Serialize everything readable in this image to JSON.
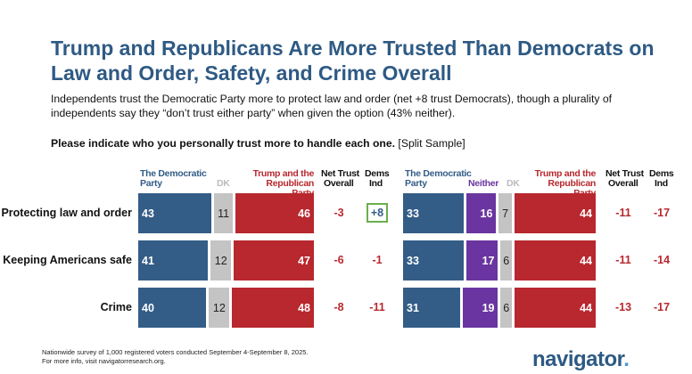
{
  "title": "Trump and Republicans Are More Trusted Than Democrats on Law and Order, Safety, and Crime Overall",
  "subtitle": "Independents trust the Democratic Party more to protect law and order (net +8 trust Democrats), though a plurality of independents say they “don’t trust either party” when given the option (43% neither).",
  "question": {
    "bold": "Please indicate who you personally trust more to handle each one.",
    "note": " [Split Sample]"
  },
  "footer": {
    "line1": "Nationwide survey of 1,000 registered voters conducted September 4-September 8, 2025.",
    "line2": "For more info, visit navigatorresearch.org."
  },
  "logo": "navigator",
  "colors": {
    "dem": "#335d87",
    "neither": "#6a35a0",
    "dk": "#c4c4c4",
    "rep": "#b8282e",
    "title": "#2e5a84",
    "highlight_box": "#6ab04c"
  },
  "chart_data": [
    {
      "type": "bar",
      "stacked": true,
      "orientation": "horizontal",
      "categories": [
        "Protecting law and order",
        "Keeping Americans safe",
        "Crime"
      ],
      "series": [
        {
          "name": "The Democratic Party",
          "values": [
            43,
            41,
            40
          ]
        },
        {
          "name": "DK",
          "values": [
            11,
            12,
            12
          ]
        },
        {
          "name": "Trump and the Republican Party",
          "values": [
            46,
            47,
            48
          ]
        }
      ],
      "net_header": "Net Trust",
      "net_overall_label": "Overall",
      "net_ind_header": "Dems",
      "net_ind_label": "Ind",
      "net_overall": [
        "-3",
        "-6",
        "-8"
      ],
      "net_ind": [
        "+8",
        "-1",
        "-11"
      ]
    },
    {
      "type": "bar",
      "stacked": true,
      "orientation": "horizontal",
      "categories": [
        "Protecting law and order",
        "Keeping Americans safe",
        "Crime"
      ],
      "series": [
        {
          "name": "The Democratic Party",
          "values": [
            33,
            33,
            31
          ]
        },
        {
          "name": "Neither",
          "values": [
            16,
            17,
            19
          ]
        },
        {
          "name": "DK",
          "values": [
            7,
            6,
            6
          ]
        },
        {
          "name": "Trump and the Republican Party",
          "values": [
            44,
            44,
            44
          ]
        }
      ],
      "net_header": "Net Trust",
      "net_overall_label": "Overall",
      "net_ind_header": "Dems",
      "net_ind_label": "Ind",
      "net_overall": [
        "-11",
        "-11",
        "-13"
      ],
      "net_ind": [
        "-17",
        "-14",
        "-17"
      ]
    }
  ]
}
